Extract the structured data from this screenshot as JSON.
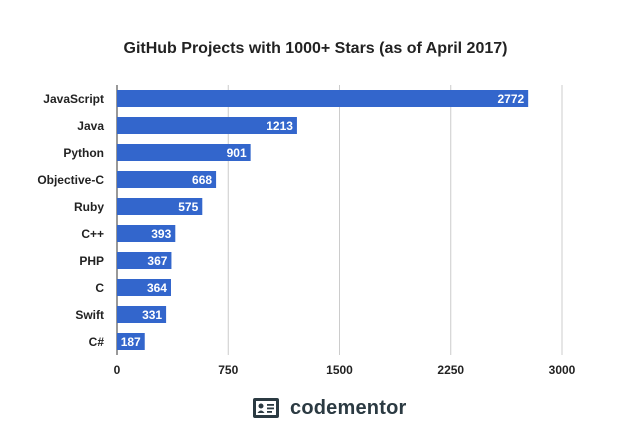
{
  "chart_data": {
    "type": "bar",
    "orientation": "horizontal",
    "title": "GitHub Projects with 1000+ Stars (as of April 2017)",
    "xlabel": "",
    "ylabel": "",
    "categories": [
      "JavaScript",
      "Java",
      "Python",
      "Objective-C",
      "Ruby",
      "C++",
      "PHP",
      "C",
      "Swift",
      "C#"
    ],
    "values": [
      2772,
      1213,
      901,
      668,
      575,
      393,
      367,
      364,
      331,
      187
    ],
    "xlim": [
      0,
      3000
    ],
    "xticks": [
      0,
      750,
      1500,
      2250,
      3000
    ],
    "grid": true,
    "legend": "none",
    "bar_color": "#3366cc",
    "data_labels": true
  },
  "brand": {
    "name": "codementor",
    "icon": "codementor-logo-icon",
    "color": "#2b3a42"
  }
}
